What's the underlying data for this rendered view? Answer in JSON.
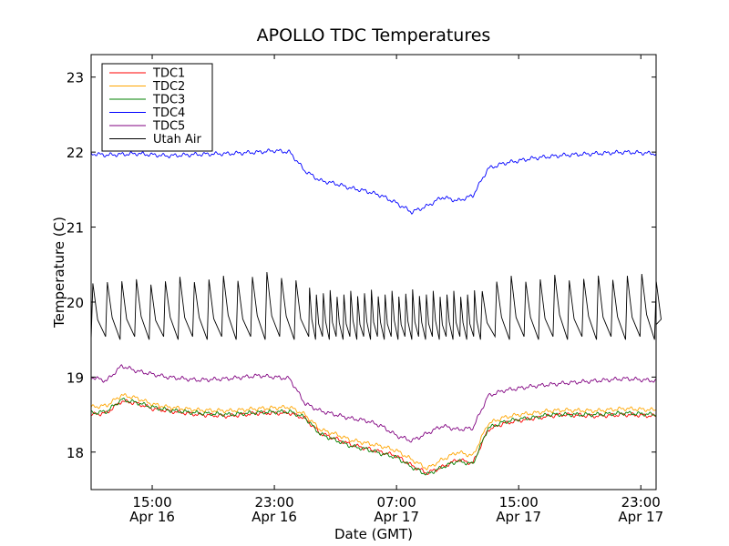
{
  "chart_data": {
    "type": "line",
    "title": "APOLLO TDC Temperatures",
    "xlabel": "Date (GMT)",
    "ylabel": "Temperature (C)",
    "xlim_hours": [
      11.0,
      48.0
    ],
    "ylim": [
      17.5,
      23.3
    ],
    "grid": false,
    "legend_position": "top-left",
    "x_ticks": [
      {
        "hour": 15,
        "time": "15:00",
        "date": "Apr 16"
      },
      {
        "hour": 23,
        "time": "23:00",
        "date": "Apr 16"
      },
      {
        "hour": 31,
        "time": "07:00",
        "date": "Apr 17"
      },
      {
        "hour": 39,
        "time": "15:00",
        "date": "Apr 17"
      },
      {
        "hour": 47,
        "time": "23:00",
        "date": "Apr 17"
      }
    ],
    "y_ticks": [
      18,
      19,
      20,
      21,
      22,
      23
    ],
    "series": [
      {
        "name": "TDC1",
        "color": "#ff0000",
        "pattern": "smooth",
        "x": [
          11,
          12,
          13,
          14,
          15,
          16,
          18,
          20,
          22,
          24,
          25,
          26,
          27,
          28,
          29,
          30,
          31,
          32,
          33,
          34,
          35,
          36,
          37,
          38,
          39,
          40,
          41,
          42,
          44,
          46,
          48
        ],
        "values": [
          18.5,
          18.52,
          18.68,
          18.65,
          18.58,
          18.55,
          18.5,
          18.48,
          18.52,
          18.52,
          18.45,
          18.25,
          18.18,
          18.1,
          18.05,
          18.0,
          17.95,
          17.82,
          17.72,
          17.8,
          17.9,
          17.85,
          18.3,
          18.38,
          18.42,
          18.45,
          18.48,
          18.5,
          18.48,
          18.5,
          18.48
        ]
      },
      {
        "name": "TDC2",
        "color": "#ffa500",
        "pattern": "smooth",
        "x": [
          11,
          12,
          13,
          14,
          15,
          16,
          18,
          20,
          22,
          24,
          25,
          26,
          27,
          28,
          29,
          30,
          31,
          32,
          33,
          34,
          35,
          36,
          37,
          38,
          39,
          40,
          41,
          42,
          44,
          46,
          48
        ],
        "values": [
          18.6,
          18.62,
          18.76,
          18.72,
          18.64,
          18.6,
          18.56,
          18.55,
          18.58,
          18.6,
          18.5,
          18.3,
          18.24,
          18.16,
          18.12,
          18.08,
          18.02,
          17.9,
          17.78,
          17.9,
          18.0,
          17.95,
          18.38,
          18.46,
          18.5,
          18.52,
          18.55,
          18.56,
          18.55,
          18.58,
          18.56
        ]
      },
      {
        "name": "TDC3",
        "color": "#008000",
        "pattern": "smooth",
        "x": [
          11,
          12,
          13,
          14,
          15,
          16,
          18,
          20,
          22,
          24,
          25,
          26,
          27,
          28,
          29,
          30,
          31,
          32,
          33,
          34,
          35,
          36,
          37,
          38,
          39,
          40,
          41,
          42,
          44,
          46,
          48
        ],
        "values": [
          18.52,
          18.54,
          18.7,
          18.66,
          18.6,
          18.56,
          18.52,
          18.5,
          18.53,
          18.54,
          18.46,
          18.24,
          18.16,
          18.08,
          18.04,
          17.98,
          17.93,
          17.8,
          17.7,
          17.8,
          17.88,
          17.84,
          18.32,
          18.4,
          18.44,
          18.46,
          18.5,
          18.5,
          18.5,
          18.52,
          18.5
        ]
      },
      {
        "name": "TDC4",
        "color": "#0000ff",
        "pattern": "smooth",
        "x": [
          11,
          12,
          14,
          16,
          18,
          20,
          22,
          23,
          24,
          25,
          26,
          27,
          28,
          29,
          30,
          31,
          32,
          33,
          34,
          35,
          36,
          37,
          38,
          40,
          42,
          44,
          46,
          48
        ],
        "values": [
          21.98,
          21.96,
          21.98,
          21.95,
          21.97,
          21.98,
          22.0,
          22.02,
          22.0,
          21.75,
          21.62,
          21.58,
          21.52,
          21.48,
          21.42,
          21.32,
          21.2,
          21.28,
          21.4,
          21.35,
          21.42,
          21.78,
          21.85,
          21.92,
          21.96,
          21.98,
          22.0,
          21.98
        ]
      },
      {
        "name": "TDC5",
        "color": "#800080",
        "pattern": "smooth",
        "x": [
          11,
          12,
          13,
          14,
          16,
          18,
          20,
          22,
          24,
          25,
          26,
          27,
          28,
          29,
          30,
          31,
          32,
          33,
          34,
          35,
          36,
          37,
          38,
          40,
          42,
          44,
          46,
          48
        ],
        "values": [
          19.0,
          18.95,
          19.15,
          19.08,
          19.0,
          18.96,
          18.98,
          19.02,
          18.98,
          18.65,
          18.55,
          18.5,
          18.45,
          18.42,
          18.35,
          18.22,
          18.15,
          18.25,
          18.35,
          18.3,
          18.32,
          18.75,
          18.82,
          18.88,
          18.92,
          18.95,
          18.98,
          18.95
        ]
      },
      {
        "name": "Utah Air",
        "color": "#000000",
        "pattern": "sawtooth",
        "x": [
          11,
          12,
          14,
          16,
          18,
          20,
          22,
          24,
          25,
          26,
          27,
          28,
          29,
          30,
          31,
          32,
          33,
          34,
          35,
          36,
          37,
          38,
          40,
          42,
          44,
          46,
          48
        ],
        "values": [
          20.2,
          20.3,
          20.25,
          20.28,
          20.3,
          20.3,
          20.35,
          20.35,
          20.15,
          20.12,
          20.1,
          20.1,
          20.12,
          20.1,
          20.1,
          20.12,
          20.1,
          20.1,
          20.1,
          20.1,
          20.25,
          20.3,
          20.3,
          20.32,
          20.3,
          20.35,
          20.3
        ],
        "minimum": 19.5
      }
    ]
  }
}
